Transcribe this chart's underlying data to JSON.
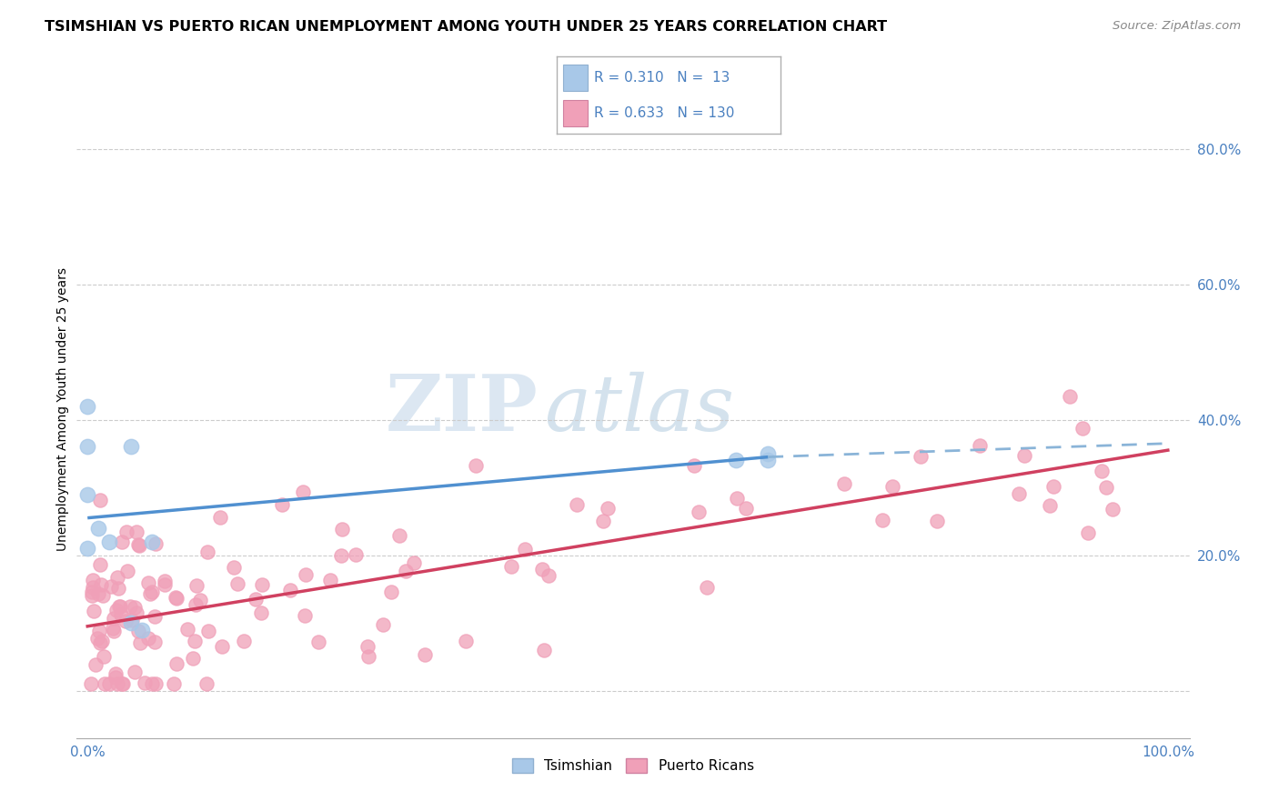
{
  "title": "TSIMSHIAN VS PUERTO RICAN UNEMPLOYMENT AMONG YOUTH UNDER 25 YEARS CORRELATION CHART",
  "source": "Source: ZipAtlas.com",
  "ylabel": "Unemployment Among Youth under 25 years",
  "color_tsimshian": "#a8c8e8",
  "color_puerto_rican": "#f0a0b8",
  "color_tsimshian_line": "#5090d0",
  "color_puerto_rican_line": "#d04060",
  "color_dashed_line": "#8ab4d8",
  "watermark_zip": "ZIP",
  "watermark_atlas": "atlas",
  "ytick_positions": [
    0.0,
    0.2,
    0.4,
    0.6,
    0.8
  ],
  "ytick_labels": [
    "",
    "20.0%",
    "40.0%",
    "60.0%",
    "80.0%"
  ],
  "xtick_positions": [
    0.0,
    0.1,
    0.2,
    0.3,
    0.4,
    0.5,
    0.6,
    0.7,
    0.8,
    0.9,
    1.0
  ],
  "xtick_labels": [
    "0.0%",
    "",
    "",
    "",
    "",
    "",
    "",
    "",
    "",
    "",
    "100.0%"
  ],
  "tsimshian_x": [
    0.0,
    0.0,
    0.0,
    0.0,
    0.01,
    0.02,
    0.04,
    0.04,
    0.05,
    0.06,
    0.6,
    0.63,
    0.63
  ],
  "tsimshian_y": [
    0.42,
    0.36,
    0.29,
    0.21,
    0.24,
    0.22,
    0.36,
    0.1,
    0.09,
    0.22,
    0.34,
    0.34,
    0.35
  ],
  "blue_line_x0": 0.0,
  "blue_line_y0": 0.255,
  "blue_line_x1": 0.63,
  "blue_line_y1": 0.345,
  "dashed_line_x0": 0.63,
  "dashed_line_y0": 0.345,
  "dashed_line_x1": 1.0,
  "dashed_line_y1": 0.365,
  "pink_line_x0": 0.0,
  "pink_line_y0": 0.095,
  "pink_line_x1": 1.0,
  "pink_line_y1": 0.355
}
